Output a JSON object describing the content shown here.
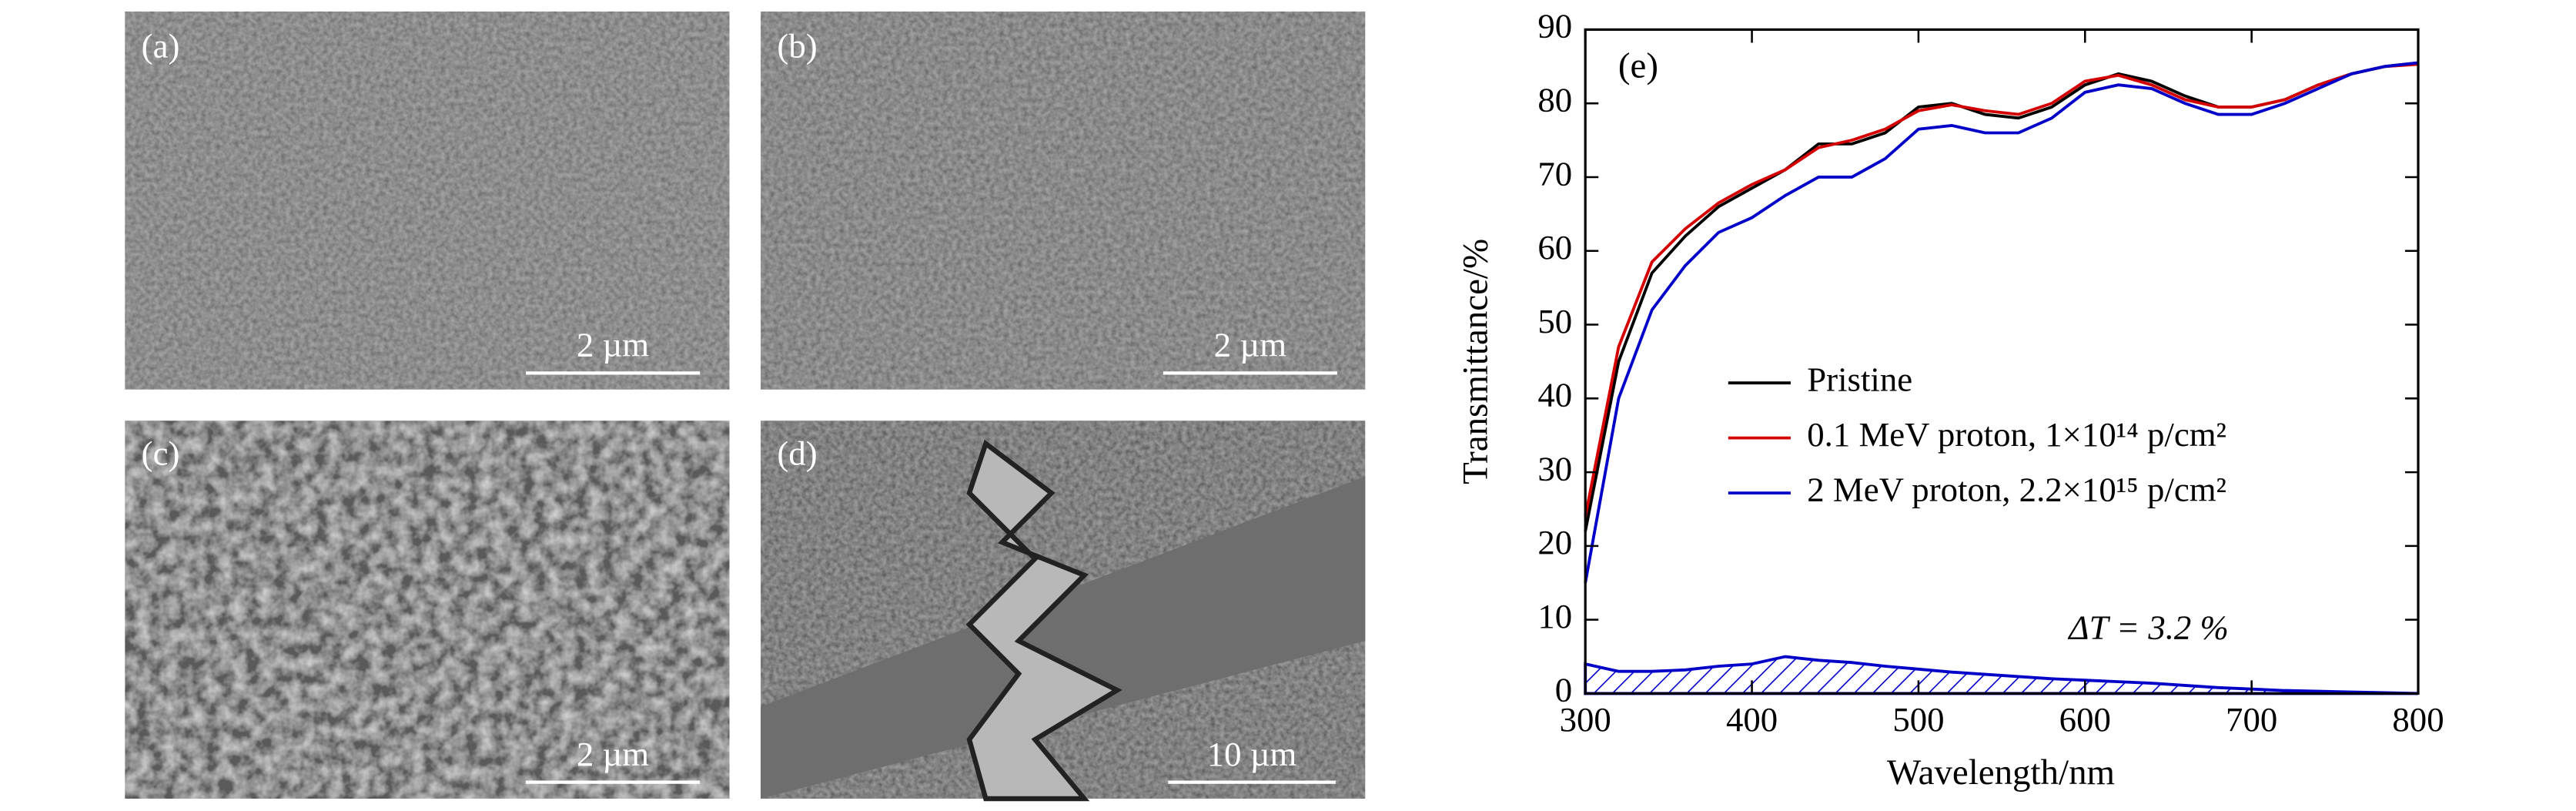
{
  "panels": [
    {
      "label": "(a)",
      "scale_bar": "2 µm"
    },
    {
      "label": "(b)",
      "scale_bar": "2 µm"
    },
    {
      "label": "(c)",
      "scale_bar": "2 µm"
    },
    {
      "label": "(d)",
      "scale_bar": "10 µm"
    }
  ],
  "chart_data": {
    "type": "line",
    "panel_label": "(e)",
    "xlabel": "Wavelength/nm",
    "ylabel": "Transmittance/%",
    "annotation": "ΔT = 3.2 %",
    "xlim": [
      300,
      800
    ],
    "ylim": [
      0,
      90
    ],
    "xticks": [
      300,
      400,
      500,
      600,
      700,
      800
    ],
    "yticks": [
      0,
      10,
      20,
      30,
      40,
      50,
      60,
      70,
      80,
      90
    ],
    "x": [
      300,
      320,
      340,
      360,
      380,
      400,
      420,
      440,
      460,
      480,
      500,
      520,
      540,
      560,
      580,
      600,
      620,
      640,
      660,
      680,
      700,
      720,
      740,
      760,
      780,
      800
    ],
    "series": [
      {
        "name": "Pristine",
        "color": "#000000",
        "values": [
          22,
          45,
          57,
          62,
          66,
          68.5,
          71,
          74.5,
          74.5,
          76,
          79.5,
          80,
          78.5,
          78,
          79.5,
          82.5,
          84,
          83,
          81,
          79.5,
          79.5,
          80.5,
          82.5,
          84,
          85,
          85.5
        ]
      },
      {
        "name": "0.1 MeV proton, 1×10¹⁴ p/cm²",
        "color": "#d40000",
        "values": [
          24,
          47,
          58.5,
          63,
          66.5,
          69,
          71,
          74,
          75,
          76.5,
          79,
          79.8,
          79,
          78.5,
          80,
          83,
          83.8,
          82.5,
          80.5,
          79.5,
          79.5,
          80.5,
          82.5,
          84,
          85,
          85.3
        ]
      },
      {
        "name": "2 MeV proton, 2.2×10¹⁵ p/cm²",
        "color": "#0000c8",
        "values": [
          15,
          40,
          52,
          58,
          62.5,
          64.5,
          67.5,
          70,
          70,
          72.5,
          76.5,
          77,
          76,
          76,
          78,
          81.5,
          82.5,
          82,
          80,
          78.5,
          78.5,
          80,
          82,
          84,
          85,
          85.5
        ]
      }
    ],
    "delta_area": {
      "color": "#0000c8",
      "values": [
        4,
        3,
        3,
        3.2,
        3.7,
        4,
        5,
        4.5,
        4.2,
        3.7,
        3.3,
        2.9,
        2.6,
        2.3,
        2,
        1.8,
        1.6,
        1.4,
        1.1,
        0.8,
        0.6,
        0.4,
        0.3,
        0.2,
        0.1,
        0
      ]
    },
    "legend": "center-right"
  }
}
